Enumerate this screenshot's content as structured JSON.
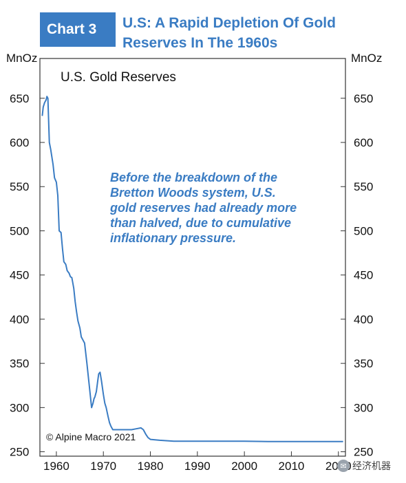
{
  "header": {
    "badge": "Chart 3",
    "title": "U.S: A Rapid Depletion Of Gold Reserves In The 1960s"
  },
  "axis_unit_left": "MnOz",
  "axis_unit_right": "MnOz",
  "watermark": {
    "text": "经济机器",
    "icon": "wechat-icon"
  },
  "colors": {
    "accent": "#3a7cc3",
    "line": "#3a7cc3",
    "annotation": "#3a7cc3"
  },
  "chart_data": {
    "type": "line",
    "title": "U.S. Gold Reserves",
    "annotation": "Before the breakdown of the Bretton Woods system, U.S. gold reserves had already more than halved, due to cumulative inflationary pressure.",
    "source": "© Alpine Macro 2021",
    "xlabel": "",
    "ylabel": "MnOz",
    "xlim": [
      1956.5,
      2021.5
    ],
    "ylim": [
      245,
      695
    ],
    "x_ticks": [
      1960,
      1970,
      1980,
      1990,
      2000,
      2010,
      2020
    ],
    "x_tick_labels": [
      "1960",
      "1970",
      "1980",
      "1990",
      "2000",
      "2010",
      "2020"
    ],
    "y_ticks": [
      250,
      300,
      350,
      400,
      450,
      500,
      550,
      600,
      650
    ],
    "grid": false,
    "legend": "none",
    "series": [
      {
        "x": [
          1957.0,
          1957.2,
          1957.5,
          1957.8,
          1958.0,
          1958.2,
          1958.5,
          1958.8,
          1959.0,
          1959.3,
          1959.6,
          1960.0,
          1960.3,
          1960.6,
          1961.0,
          1961.3,
          1961.6,
          1962.0,
          1962.3,
          1962.7,
          1963.0,
          1963.3,
          1963.7,
          1964.0,
          1964.3,
          1964.6,
          1965.0,
          1965.3,
          1965.7,
          1966.0,
          1966.5,
          1967.0,
          1967.5,
          1967.8,
          1968.0,
          1968.2,
          1968.5,
          1968.8,
          1969.0,
          1969.3,
          1969.6,
          1970.0,
          1970.3,
          1970.6,
          1971.0,
          1971.3,
          1971.6,
          1971.9,
          1972.0,
          1973.0,
          1974.0,
          1975.0,
          1976.0,
          1977.0,
          1978.0,
          1978.5,
          1979.0,
          1979.5,
          1980.0,
          1982.0,
          1985.0,
          1990.0,
          1995.0,
          2000.0,
          2005.0,
          2010.0,
          2015.0,
          2021.0
        ],
        "values": [
          630,
          640,
          645,
          648,
          652,
          650,
          600,
          592,
          585,
          575,
          560,
          555,
          540,
          500,
          498,
          480,
          465,
          462,
          455,
          452,
          448,
          447,
          435,
          420,
          408,
          398,
          390,
          380,
          376,
          373,
          350,
          325,
          300,
          305,
          310,
          312,
          318,
          330,
          338,
          340,
          330,
          315,
          305,
          300,
          290,
          283,
          279,
          276,
          275,
          275,
          275,
          275,
          275,
          276,
          277,
          275,
          270,
          266,
          264,
          263,
          262,
          262,
          262,
          262,
          261.5,
          261.5,
          261.5,
          261.5
        ]
      }
    ]
  }
}
